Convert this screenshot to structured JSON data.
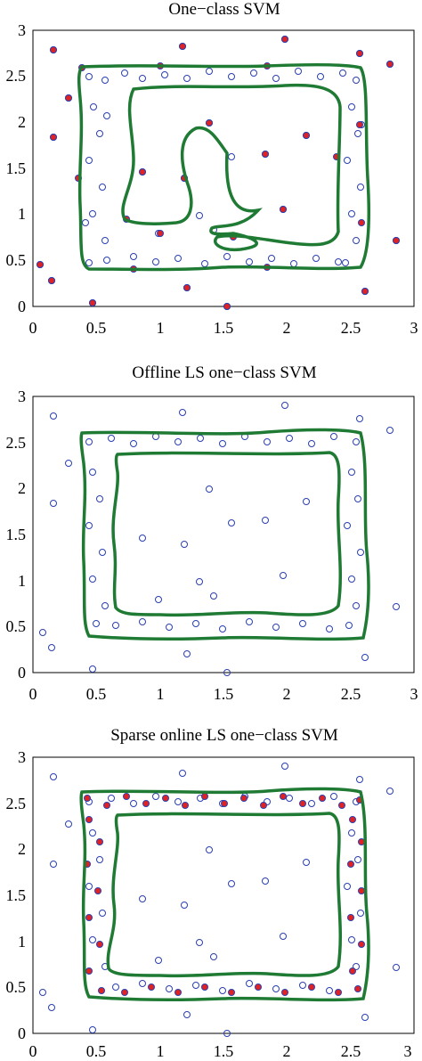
{
  "figure": {
    "background": "#ffffff",
    "axis_color": "#000000",
    "point_color": "#2b3fb0",
    "support_color": "#e02222",
    "boundary_color": "#1f7a34"
  },
  "chart_data": [
    {
      "type": "scatter",
      "title": "One−class SVM",
      "xlim": [
        0,
        3
      ],
      "ylim": [
        0,
        3
      ],
      "xticks": [
        "0",
        "0.5",
        "1",
        "1.5",
        "2",
        "2.5",
        "3"
      ],
      "yticks": [
        "0",
        "0.5",
        "1",
        "1.5",
        "2",
        "2.5",
        "3"
      ],
      "grid": false,
      "data_points": "noisy square annulus, x 0.4-2.6, y 0.4-2.6, plus ~30 outliers",
      "support_vectors": "sparse red-filled points on boundary and at outliers",
      "decision_boundary": "outer contour around square ring plus inner irregular contour"
    },
    {
      "type": "scatter",
      "title": "Offline LS one−class SVM",
      "xlim": [
        0,
        3
      ],
      "ylim": [
        0,
        3
      ],
      "xticks": [
        "0",
        "0.5",
        "1",
        "1.5",
        "2",
        "2.5",
        "3"
      ],
      "yticks": [
        "0",
        "0.5",
        "1",
        "1.5",
        "2",
        "2.5",
        "3"
      ],
      "grid": false,
      "data_points": "noisy square annulus, x 0.4-2.6, y 0.4-2.6, plus ~30 outliers",
      "support_vectors": "none shown",
      "decision_boundary": "outer contour ~0.42-2.62 and inner contour ~0.65-2.4"
    },
    {
      "type": "scatter",
      "title": "Sparse online LS one−class SVM",
      "xlim": [
        0,
        3
      ],
      "ylim": [
        0,
        3
      ],
      "xticks": [
        "0",
        "0.5",
        "1",
        "1.5",
        "2",
        "2.5",
        "3"
      ],
      "yticks": [
        "0",
        "0.5",
        "1",
        "1.5",
        "2",
        "2.5",
        "3"
      ],
      "grid": false,
      "data_points": "noisy square annulus, x 0.4-2.6, y 0.4-2.6, plus ~30 outliers",
      "support_vectors": "dense red-filled points along the ring",
      "decision_boundary": "outer contour ~0.4-2.63 and inner contour ~0.6-2.4"
    }
  ]
}
